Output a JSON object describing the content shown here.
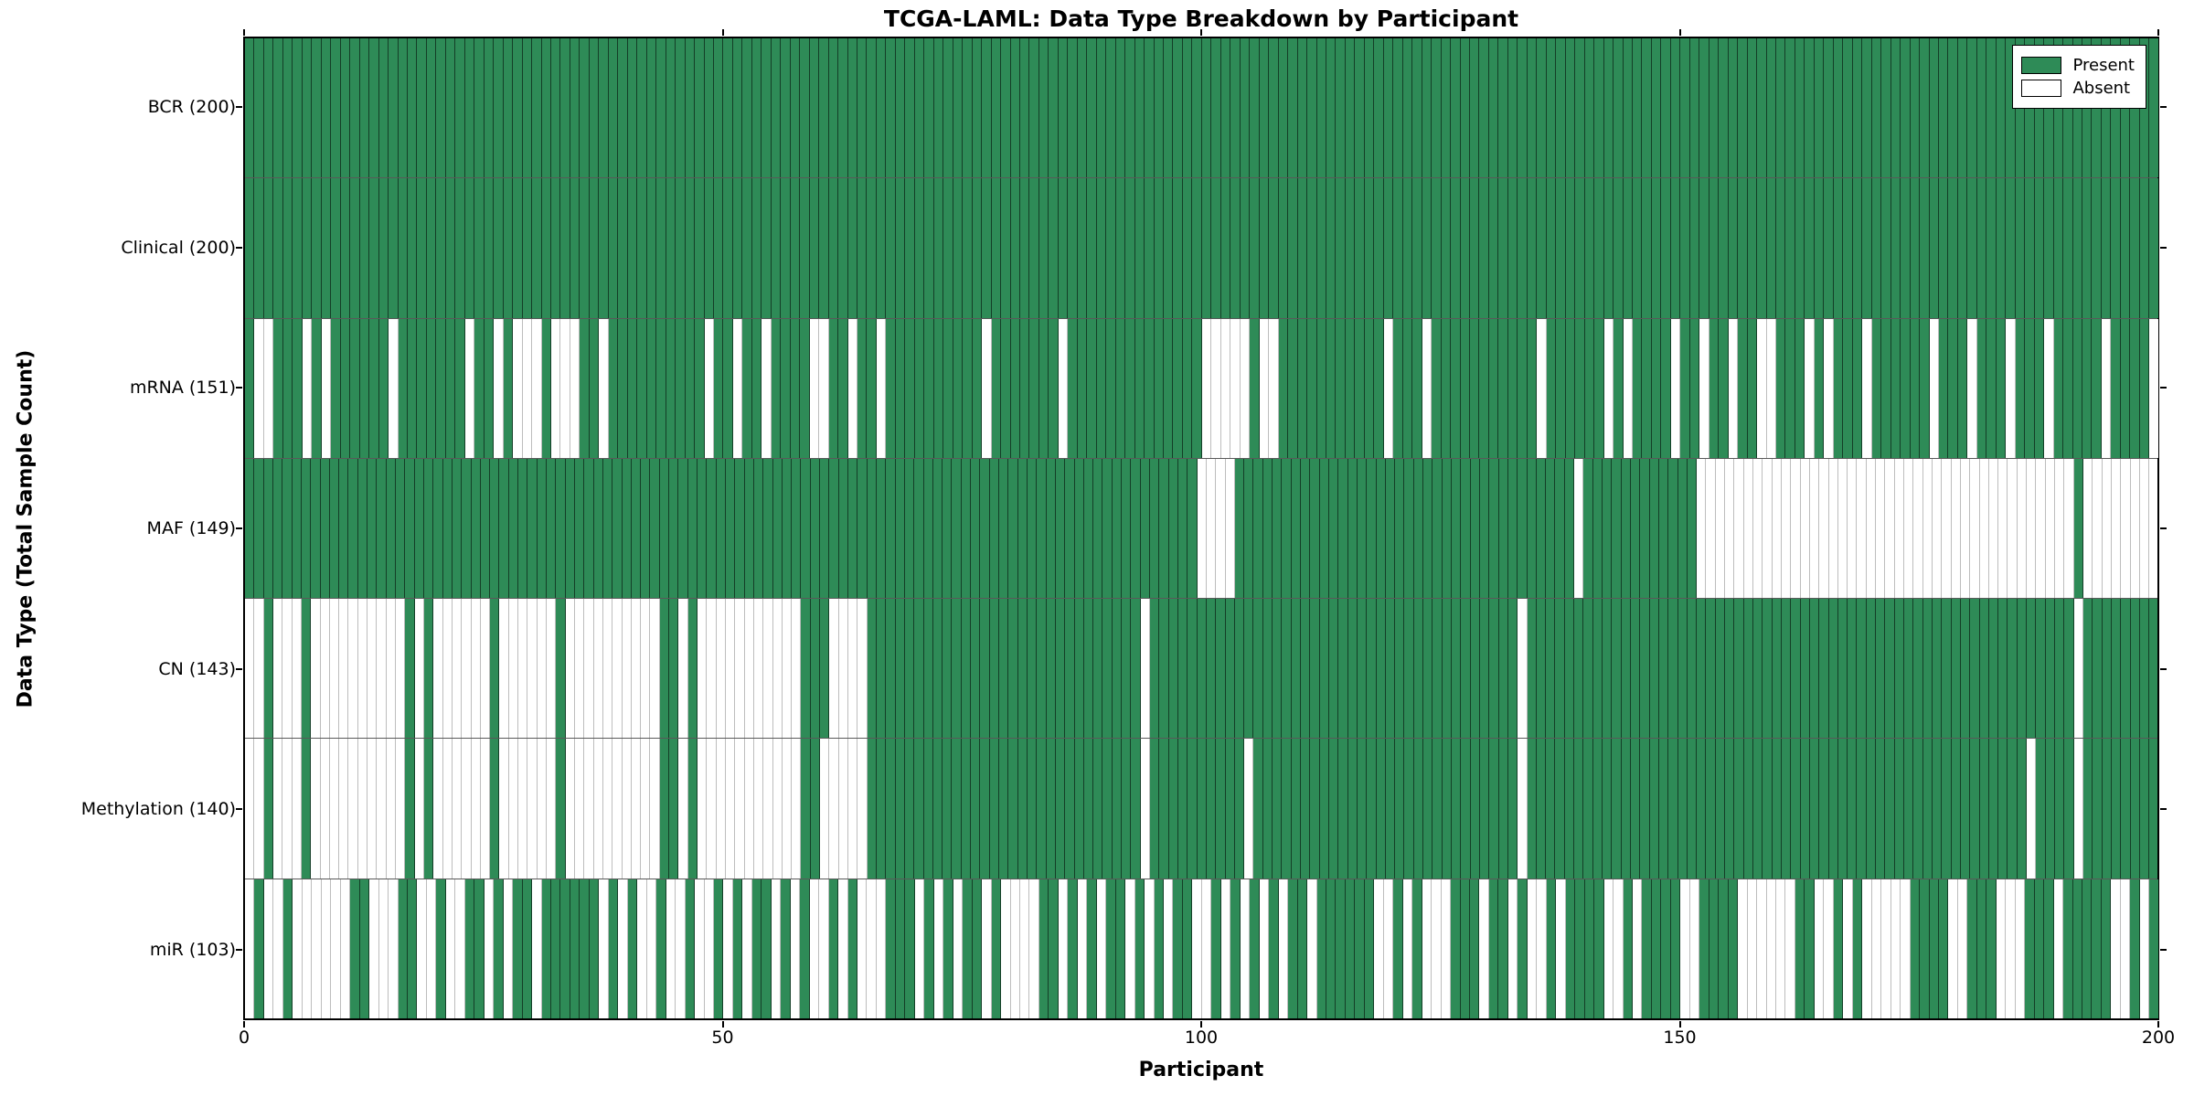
{
  "title": "TCGA-LAML: Data Type Breakdown by Participant",
  "xlabel": "Participant",
  "ylabel": "Data Type (Total Sample Count)",
  "legend": {
    "present_label": "Present",
    "absent_label": "Absent"
  },
  "colors": {
    "present": "#2e8b57",
    "absent": "#ffffff",
    "cell_edge_on_present": "rgba(0,0,0,0.55)",
    "cell_edge_on_absent": "#bdbdbd",
    "frame": "#000000",
    "row_separator": "rgba(0,0,0,0.65)"
  },
  "chart_data": {
    "type": "heatmap",
    "title": "TCGA-LAML: Data Type Breakdown by Participant",
    "xlabel": "Participant",
    "ylabel": "Data Type (Total Sample Count)",
    "legend_entries": [
      "Present",
      "Absent"
    ],
    "legend_position": "upper right",
    "x_axis": {
      "min": 0,
      "max": 200,
      "ticks": [
        0,
        50,
        100,
        150,
        200
      ]
    },
    "cell_states": {
      "present": "1",
      "absent": "0"
    },
    "rows": [
      {
        "label": "BCR",
        "total": 200,
        "display": "BCR (200)",
        "pattern": "11111111111111111111111111111111111111111111111111111111111111111111111111111111111111111111111111111111111111111111111111111111111111111111111111111111111111111111111111111111111111111111111111111111"
      },
      {
        "label": "Clinical",
        "total": 200,
        "display": "Clinical (200)",
        "pattern": "11111111111111111111111111111111111111111111111111111111111111111111111111111111111111111111111111111111111111111111111111111111111111111111111111111111111111111111111111111111111111111111111111111111"
      },
      {
        "label": "mRNA",
        "total": 151,
        "display": "mRNA (151)",
        "pattern": "10011101011111101111111011010001000110111111111101101101111001101101111111111011111110111111111111110000010011111111111011101111111111101111110101111011011011001110101110111111011101110111011111011110"
      },
      {
        "label": "MAF",
        "total": 149,
        "display": "MAF (149)",
        "pattern": "11111111111111111111111111111111111111111111111111111111111111111111111111111111111111111111111111111000011111111111111111111111111111111111101111111111110000000000000000000000000000000000000000100000000"
      },
      {
        "label": "CN",
        "total": 143,
        "display": "CN (143)",
        "pattern": "00100010000000000101000000100000010000000000110100000000000111000011111111111111111111111111111011111111111111111111111111111111111111101111111111111111111111111111111111111111111111111111111111011111111"
      },
      {
        "label": "Methylation",
        "total": 140,
        "display": "Methylation (140)",
        "pattern": "00100010000000000101000000100000010000000000110100000000000110000011111111111111111111111111111011111111110111111111111111111111111111101111111111111111111111111111111111111111111111111111101111011111111"
      },
      {
        "label": "miR",
        "total": 103,
        "display": "miR (103)",
        "pattern": "01001000000110001100100110101101111110101001001001010110101001010001110101011010000110101011010101100101010101101111110010100011101101001011110010111100111100000011001010000011110011100011101111100101"
      }
    ]
  }
}
